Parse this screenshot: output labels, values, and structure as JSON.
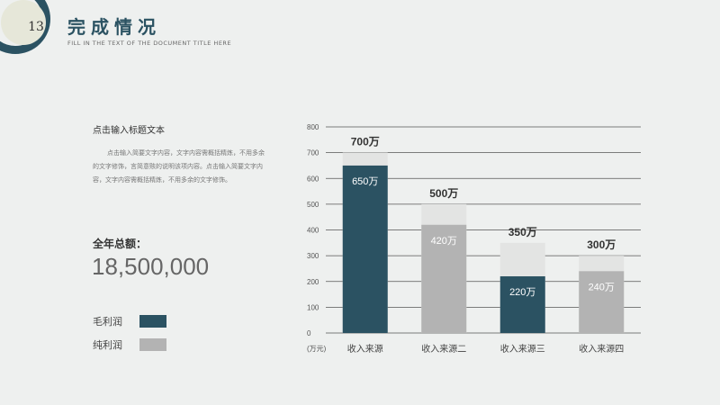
{
  "page_number": "13",
  "header": {
    "title": "完成情况",
    "subtitle": "FILL IN THE TEXT OF THE DOCUMENT TITLE HERE"
  },
  "intro": {
    "title": "点击输入标题文本",
    "body": "点击输入简要文字内容，文字内容需概括精炼，不用多余的文字修饰，言简意赅的说明该项内容。点击输入简要文字内容，文字内容需概括精炼，不用多余的文字修饰。"
  },
  "summary": {
    "label": "全年总额：",
    "value": "18,500,000"
  },
  "legend": [
    {
      "label": "毛利润",
      "color": "#2b5262"
    },
    {
      "label": "纯利润",
      "color": "#b3b3b3"
    }
  ],
  "colors": {
    "accent": "#2b5262",
    "secondary": "#b3b3b3",
    "backdrop": "#e3e4e3"
  },
  "chart_data": {
    "type": "bar",
    "categories": [
      "收入来源",
      "收入来源二",
      "收入来源三",
      "收入来源四"
    ],
    "unit_label": "(万元)",
    "ylim": [
      0,
      800
    ],
    "yticks": [
      0,
      100,
      200,
      300,
      400,
      500,
      600,
      700,
      800
    ],
    "grid": true,
    "series": [
      {
        "name": "毛利润",
        "values": [
          650,
          null,
          220,
          null
        ],
        "labels": [
          "650万",
          "",
          "220万",
          ""
        ]
      },
      {
        "name": "纯利润",
        "values": [
          null,
          420,
          null,
          240
        ],
        "labels": [
          "",
          "420万",
          "",
          "240万"
        ]
      }
    ],
    "totals": [
      700,
      500,
      350,
      300
    ],
    "total_labels": [
      "700万",
      "500万",
      "350万",
      "300万"
    ]
  }
}
